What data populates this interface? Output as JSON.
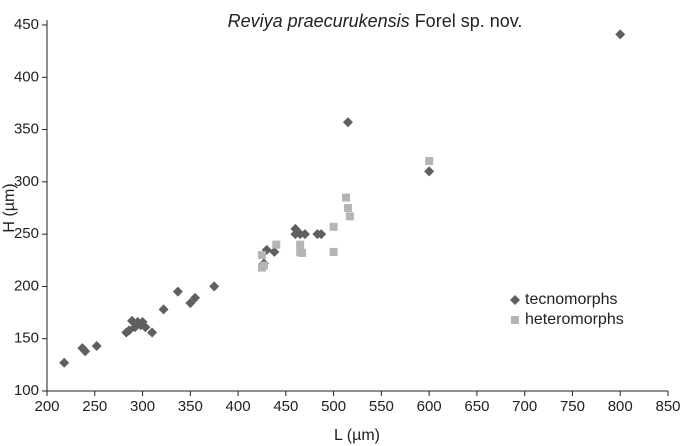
{
  "chart_data": {
    "type": "scatter",
    "title": [
      "Reviya praecurukensis",
      "Forel sp. nov."
    ],
    "x_label": "L (µm)",
    "y_label": "H (µm)",
    "xlim": [
      200,
      850
    ],
    "xticks": [
      200,
      250,
      300,
      350,
      400,
      450,
      500,
      550,
      600,
      650,
      700,
      750,
      800,
      850
    ],
    "ylim": [
      100,
      450
    ],
    "yticks": [
      100,
      150,
      200,
      250,
      300,
      350,
      400,
      450
    ],
    "grid": false,
    "legend": "right",
    "series": [
      {
        "name": "tecnomorphs",
        "color": "#5f5f5f",
        "marker": "diamond",
        "x": [
          218,
          237,
          240,
          252,
          283,
          286,
          289,
          292,
          295,
          298,
          300,
          303,
          310,
          322,
          337,
          350,
          355,
          375,
          427,
          430,
          438,
          460,
          460,
          465,
          470,
          483,
          487,
          515,
          600,
          800
        ],
        "values": [
          127,
          141,
          138,
          143,
          156,
          158,
          167,
          161,
          166,
          163,
          166,
          161,
          156,
          178,
          195,
          184,
          189,
          200,
          222,
          235,
          233,
          255,
          250,
          250,
          250,
          250,
          250,
          357,
          310,
          441
        ]
      },
      {
        "name": "heteromorphs",
        "color": "#b5b5b5",
        "marker": "square",
        "x": [
          425,
          425,
          427,
          440,
          465,
          465,
          467,
          500,
          500,
          513,
          515,
          517,
          600
        ],
        "values": [
          230,
          218,
          220,
          240,
          240,
          233,
          232,
          257,
          233,
          285,
          275,
          267,
          320
        ]
      }
    ]
  }
}
